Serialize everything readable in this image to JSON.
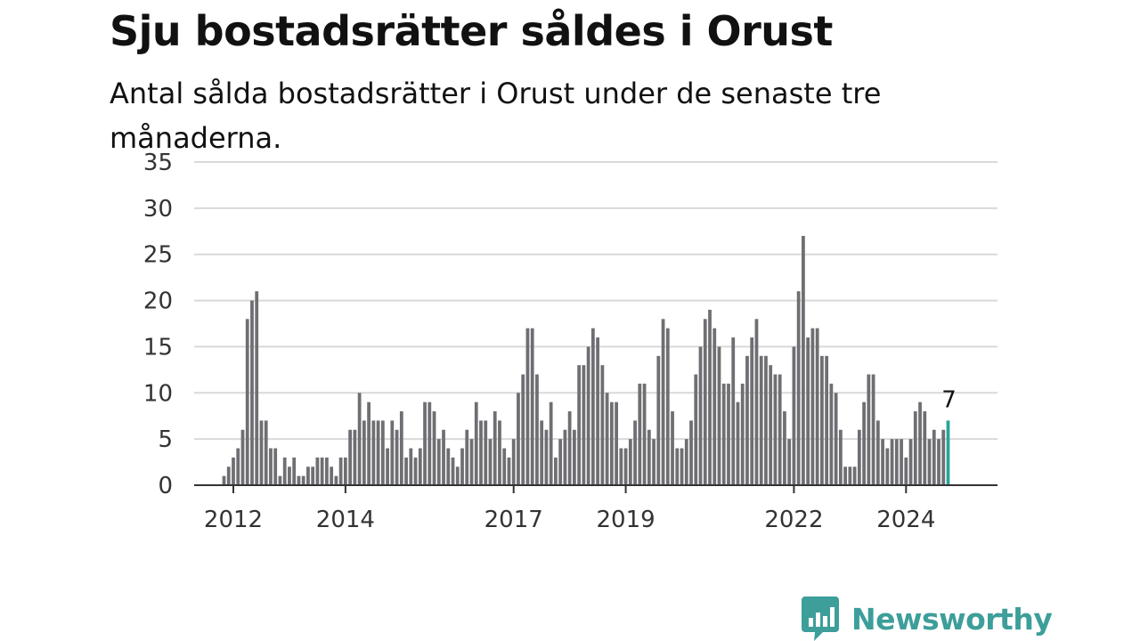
{
  "header": {
    "title": "Sju bostadsrätter såldes i Orust",
    "subtitle": "Antal sålda bostadsrätter i Orust under de senaste tre månaderna."
  },
  "brand": {
    "name": "Newsworthy",
    "color": "#3d9e9a",
    "icon": "newsworthy-logo-icon"
  },
  "chart_data": {
    "type": "bar",
    "x_unit": "month",
    "start": "2011-11",
    "end": "2024-12",
    "ylim": [
      0,
      35
    ],
    "yticks": [
      0,
      5,
      10,
      15,
      20,
      25,
      30,
      35
    ],
    "xticks": [
      "2012",
      "2014",
      "2017",
      "2019",
      "2022",
      "2024"
    ],
    "grid": true,
    "bar_color": "#6e6e73",
    "highlight_color": "#2aa39a",
    "highlight_last": true,
    "last_label": "7",
    "values": [
      1,
      2,
      3,
      4,
      6,
      18,
      20,
      21,
      7,
      7,
      4,
      4,
      1,
      3,
      2,
      3,
      1,
      1,
      2,
      2,
      3,
      3,
      3,
      2,
      1,
      3,
      3,
      6,
      6,
      10,
      7,
      9,
      7,
      7,
      7,
      4,
      7,
      6,
      8,
      3,
      4,
      3,
      4,
      9,
      9,
      8,
      5,
      6,
      4,
      3,
      2,
      4,
      6,
      5,
      9,
      7,
      7,
      5,
      8,
      7,
      4,
      3,
      5,
      10,
      12,
      17,
      17,
      12,
      7,
      6,
      9,
      3,
      5,
      6,
      8,
      6,
      13,
      13,
      15,
      17,
      16,
      13,
      10,
      9,
      9,
      4,
      4,
      5,
      7,
      11,
      11,
      6,
      5,
      14,
      18,
      17,
      8,
      4,
      4,
      5,
      7,
      12,
      15,
      18,
      19,
      17,
      15,
      11,
      11,
      16,
      9,
      11,
      14,
      16,
      18,
      14,
      14,
      13,
      12,
      12,
      8,
      5,
      15,
      21,
      27,
      16,
      17,
      17,
      14,
      14,
      11,
      10,
      6,
      2,
      2,
      2,
      6,
      9,
      12,
      12,
      7,
      5,
      4,
      5,
      5,
      5,
      3,
      5,
      8,
      9,
      8,
      5,
      6,
      5,
      6,
      7
    ]
  }
}
